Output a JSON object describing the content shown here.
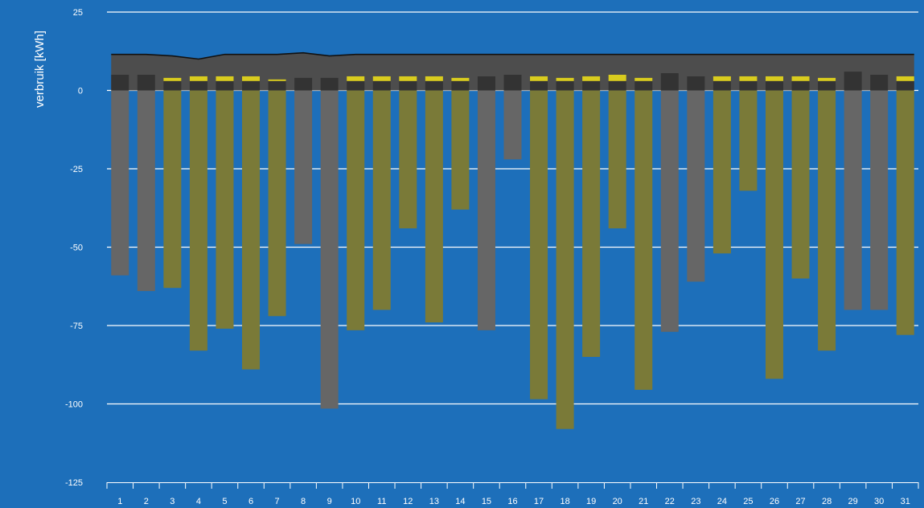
{
  "chart_data": {
    "type": "bar",
    "ylabel": "verbruik [kWh]",
    "xlabel": "",
    "title": "",
    "ylim": [
      -125,
      25
    ],
    "yticks": [
      25,
      0,
      -25,
      -50,
      -75,
      -100,
      -125
    ],
    "grid": true,
    "colors": {
      "background": "#1d6fba",
      "grid": "#ffffff",
      "area": "#4d4d4d",
      "area_line": "#111111",
      "consumption": "#333333",
      "feed_in_gray": "#666666",
      "feed_in_olive": "#7a7a38",
      "yellow": "#d9cc1e"
    },
    "categories": [
      "1",
      "2",
      "3",
      "4",
      "5",
      "6",
      "7",
      "8",
      "9",
      "10",
      "11",
      "12",
      "13",
      "14",
      "15",
      "16",
      "17",
      "18",
      "19",
      "20",
      "21",
      "22",
      "23",
      "24",
      "25",
      "26",
      "27",
      "28",
      "29",
      "30",
      "31"
    ],
    "series": [
      {
        "key": "area",
        "values": [
          11.5,
          11.5,
          11,
          10,
          11.5,
          11.5,
          11.5,
          12,
          11,
          11.5,
          11.5,
          11.5,
          11.5,
          11.5,
          11.5,
          11.5,
          11.5,
          11.5,
          11.5,
          11.5,
          11.5,
          11.5,
          11.5,
          11.5,
          11.5,
          11.5,
          11.5,
          11.5,
          11.5,
          11.5,
          11.5
        ]
      },
      {
        "key": "consumption",
        "values": [
          5,
          5,
          3,
          3,
          3,
          3,
          3,
          4,
          4,
          3,
          3,
          3,
          3,
          3,
          4.5,
          5,
          3,
          3,
          3,
          3,
          3,
          5.5,
          4.5,
          3,
          3,
          3,
          3,
          3,
          6,
          5,
          3
        ]
      },
      {
        "key": "yellow",
        "values": [
          0,
          0,
          1,
          1.5,
          1.5,
          1.5,
          0.5,
          0,
          0,
          1.5,
          1.5,
          1.5,
          1.5,
          1,
          0,
          0,
          1.5,
          1,
          1.5,
          2,
          1,
          0,
          0,
          1.5,
          1.5,
          1.5,
          1.5,
          1,
          0,
          0,
          1.5
        ]
      },
      {
        "key": "feed_in",
        "values": [
          -59,
          -64,
          -63,
          -83,
          -76,
          -89,
          -72,
          -49,
          -101.5,
          -76.5,
          -70,
          -44,
          -74,
          -38,
          -76.5,
          -22,
          -98.5,
          -108,
          -85,
          -44,
          -95.5,
          -77,
          -61,
          -52,
          -32,
          -92,
          -60,
          -83,
          -70,
          -70,
          -78
        ],
        "colors": [
          "gray",
          "gray",
          "olive",
          "olive",
          "olive",
          "olive",
          "olive",
          "gray",
          "gray",
          "olive",
          "olive",
          "olive",
          "olive",
          "olive",
          "gray",
          "gray",
          "olive",
          "olive",
          "olive",
          "olive",
          "olive",
          "gray",
          "gray",
          "olive",
          "olive",
          "olive",
          "olive",
          "olive",
          "gray",
          "gray",
          "olive"
        ]
      }
    ]
  }
}
